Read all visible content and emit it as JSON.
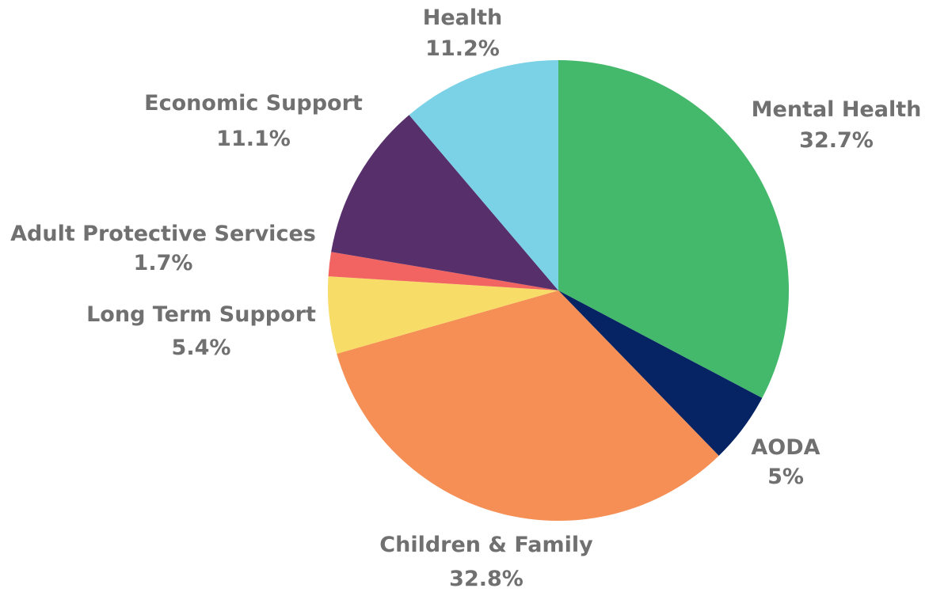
{
  "chart_data": {
    "type": "pie",
    "slices": [
      {
        "label": "Mental Health",
        "value_label": "32.7%",
        "value": 32.7,
        "color": "#44b86b"
      },
      {
        "label": "AODA",
        "value_label": "5%",
        "value": 5.0,
        "color": "#062463"
      },
      {
        "label": "Children & Family",
        "value_label": "32.8%",
        "value": 32.8,
        "color": "#f58f55"
      },
      {
        "label": "Long Term Support",
        "value_label": "5.4%",
        "value": 5.4,
        "color": "#f8dc68"
      },
      {
        "label": "Adult Protective Services",
        "value_label": "1.7%",
        "value": 1.7,
        "color": "#f16462"
      },
      {
        "label": "Economic Support",
        "value_label": "11.1%",
        "value": 11.1,
        "color": "#57306b"
      },
      {
        "label": "Health",
        "value_label": "11.2%",
        "value": 11.2,
        "color": "#7bd2e6"
      }
    ],
    "start": "12 o'clock",
    "direction": "clockwise",
    "legend": "none",
    "label_color": "#707070"
  }
}
